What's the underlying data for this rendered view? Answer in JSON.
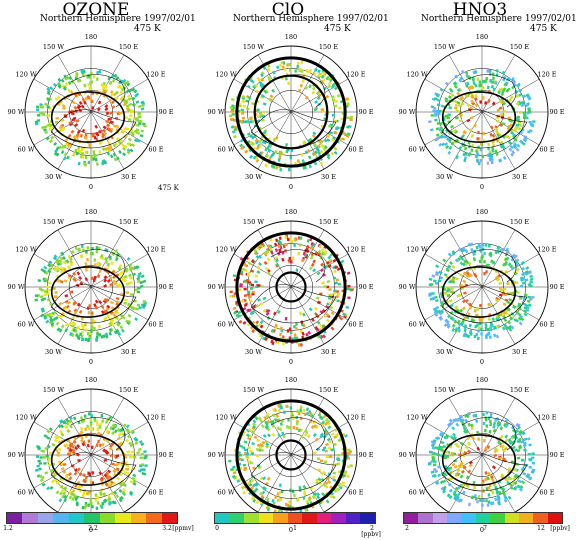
{
  "columns": [
    {
      "title": "OZONE",
      "header": "Northern Hemisphere",
      "date": "1997/02/01",
      "level": "475 K",
      "colorbar": {
        "colors": [
          "#7a1fa0",
          "#b07ad6",
          "#9aa4ea",
          "#56b4f0",
          "#22c7c7",
          "#24c46b",
          "#8bdc2a",
          "#e8e81a",
          "#f6b21c",
          "#f36a1c",
          "#e01818"
        ],
        "ticks": [
          "1.2",
          "2.2",
          "3.2"
        ],
        "unit": "[ppmv]"
      }
    },
    {
      "title": "ClO",
      "header": "Northern Hemisphere",
      "date": "1997/02/01",
      "level": "475 K",
      "colorbar": {
        "colors": [
          "#20c8c0",
          "#30d070",
          "#9fe030",
          "#f0e020",
          "#f6a020",
          "#f05020",
          "#e01818",
          "#e0207a",
          "#a020c0",
          "#5020c8",
          "#2020b0"
        ],
        "ticks": [
          "0",
          "1",
          "2"
        ],
        "unit": "[ppbv]"
      }
    },
    {
      "title": "HNO3",
      "header": "Northern Hemisphere",
      "date": "1997/02/01",
      "level": "475 K",
      "colorbar": {
        "colors": [
          "#9020a0",
          "#b070d0",
          "#c0a0e8",
          "#80a8ff",
          "#40c0ff",
          "#20d0a0",
          "#40d040",
          "#d0e020",
          "#f0b020",
          "#f06020",
          "#e01010"
        ],
        "ticks": [
          "2",
          "7",
          "12"
        ],
        "unit": "[ppbv]"
      }
    }
  ],
  "longitudes": {
    "top": "180",
    "l1": "150 W",
    "r1": "150 E",
    "l2": "120 W",
    "r2": "120 E",
    "l3": "90 W",
    "r3": "90 E",
    "l4": "60 W",
    "r4": "60 E",
    "l5": "30 W",
    "r5": "30 E",
    "bottom": "0"
  },
  "stray_label": "475 K",
  "colors": {
    "ring": "#000000",
    "grid": "#000000"
  }
}
